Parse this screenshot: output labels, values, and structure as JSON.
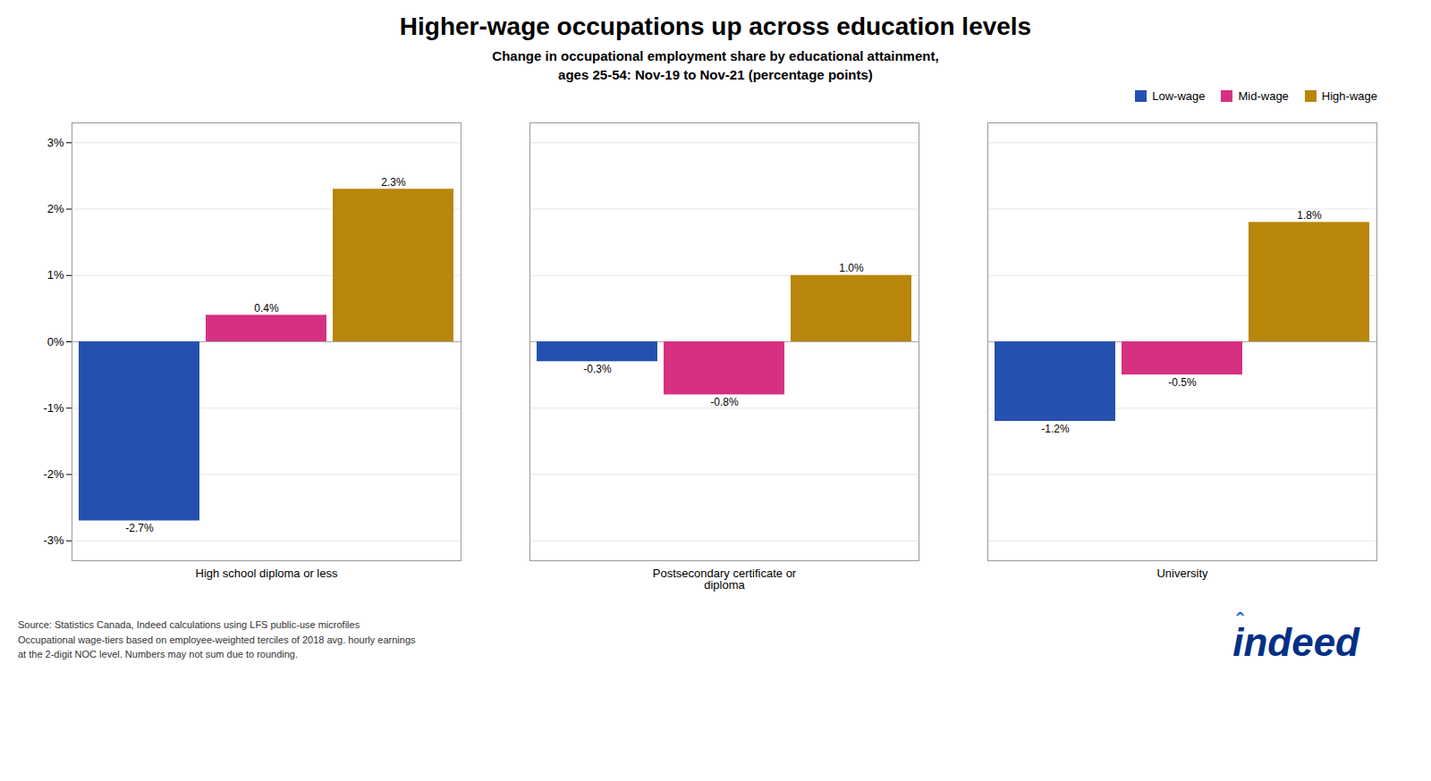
{
  "chart_data": {
    "type": "bar",
    "title": "Higher-wage occupations up across education levels",
    "subtitle": "Change in occupational employment share by educational attainment,\nages 25-54: Nov-19 to Nov-21 (percentage points)",
    "caption": "Source: Statistics Canada, Indeed calculations using LFS public-use microfiles\nOccupational wage-tiers based on employee-weighted terciles of 2018 avg. hourly earnings\nat the 2-digit NOC level. Numbers may not sum due to rounding.",
    "annotations": [
      {
        "text": "indeed",
        "color": "#003087"
      },
      {
        "text": "ˆ",
        "color": "#0066cc"
      }
    ],
    "categories": [
      "High school diploma or less",
      "Postsecondary certificate or\ndiploma",
      "University"
    ],
    "series": [
      {
        "name": "Low-wage",
        "color": "#2650b0",
        "values": [
          -2.7,
          -0.3,
          -1.2
        ],
        "value_labels": [
          "-2.7%",
          "-0.3%",
          "-1.2%"
        ]
      },
      {
        "name": "Mid-wage",
        "color": "#d63080",
        "values": [
          0.4,
          -0.8,
          -0.5
        ],
        "value_labels": [
          "0.4%",
          "-0.8%",
          "-0.5%"
        ]
      },
      {
        "name": "High-wage",
        "color": "#b8860b",
        "values": [
          2.3,
          1.0,
          1.8
        ],
        "value_labels": [
          "2.3%",
          "1.0%",
          "1.8%"
        ]
      }
    ],
    "ylim": [
      -3.3,
      3.3
    ],
    "yticks": [
      {
        "value": -3,
        "label": "-3%"
      },
      {
        "value": -2,
        "label": "-2%"
      },
      {
        "value": -1,
        "label": "-1%"
      },
      {
        "value": 0,
        "label": "0%"
      },
      {
        "value": 1,
        "label": "1%"
      },
      {
        "value": 2,
        "label": "2%"
      },
      {
        "value": 3,
        "label": "3%"
      }
    ],
    "grid": true,
    "legend": "upper right",
    "data_labels": true
  }
}
